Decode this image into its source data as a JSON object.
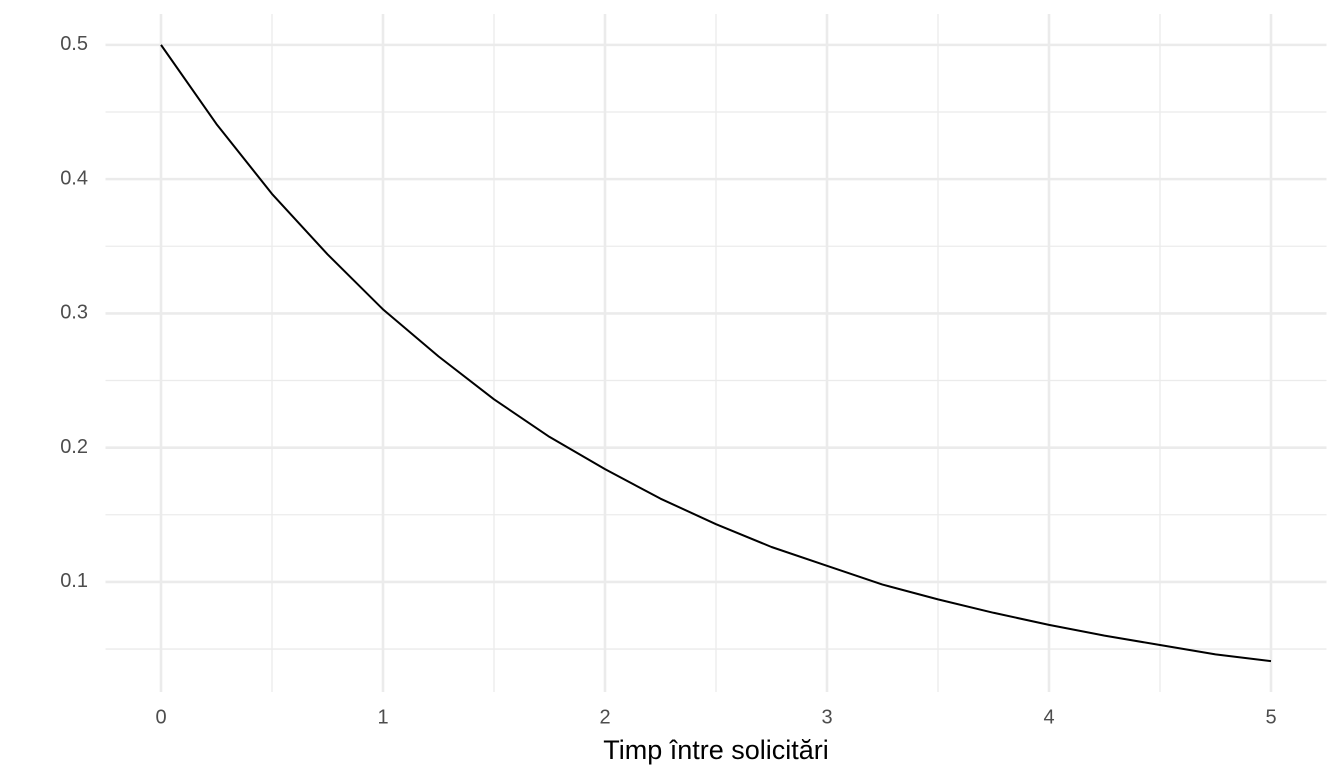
{
  "chart_data": {
    "type": "line",
    "x_label": "Timp între solicitări",
    "x": [
      0,
      0.25,
      0.5,
      0.75,
      1,
      1.25,
      1.5,
      1.75,
      2,
      2.25,
      2.5,
      2.75,
      3,
      3.25,
      3.5,
      3.75,
      4,
      4.25,
      4.5,
      4.75,
      5
    ],
    "series": [
      {
        "color": "#000000",
        "values": [
          0.5,
          0.441,
          0.389,
          0.344,
          0.303,
          0.268,
          0.236,
          0.208,
          0.184,
          0.162,
          0.143,
          0.126,
          0.112,
          0.098,
          0.087,
          0.077,
          0.068,
          0.06,
          0.053,
          0.046,
          0.041
        ]
      }
    ],
    "xlim": [
      -0.25,
      5.25
    ],
    "ylim": [
      0.018,
      0.523
    ],
    "xticks": [
      0,
      1,
      2,
      3,
      4,
      5
    ],
    "yticks": [
      0.1,
      0.2,
      0.3,
      0.4,
      0.5
    ],
    "x_minor_ticks": [
      0.5,
      1.5,
      2.5,
      3.5,
      4.5
    ],
    "y_minor_ticks": [
      0.05,
      0.15,
      0.25,
      0.35,
      0.45
    ],
    "grid": true
  }
}
